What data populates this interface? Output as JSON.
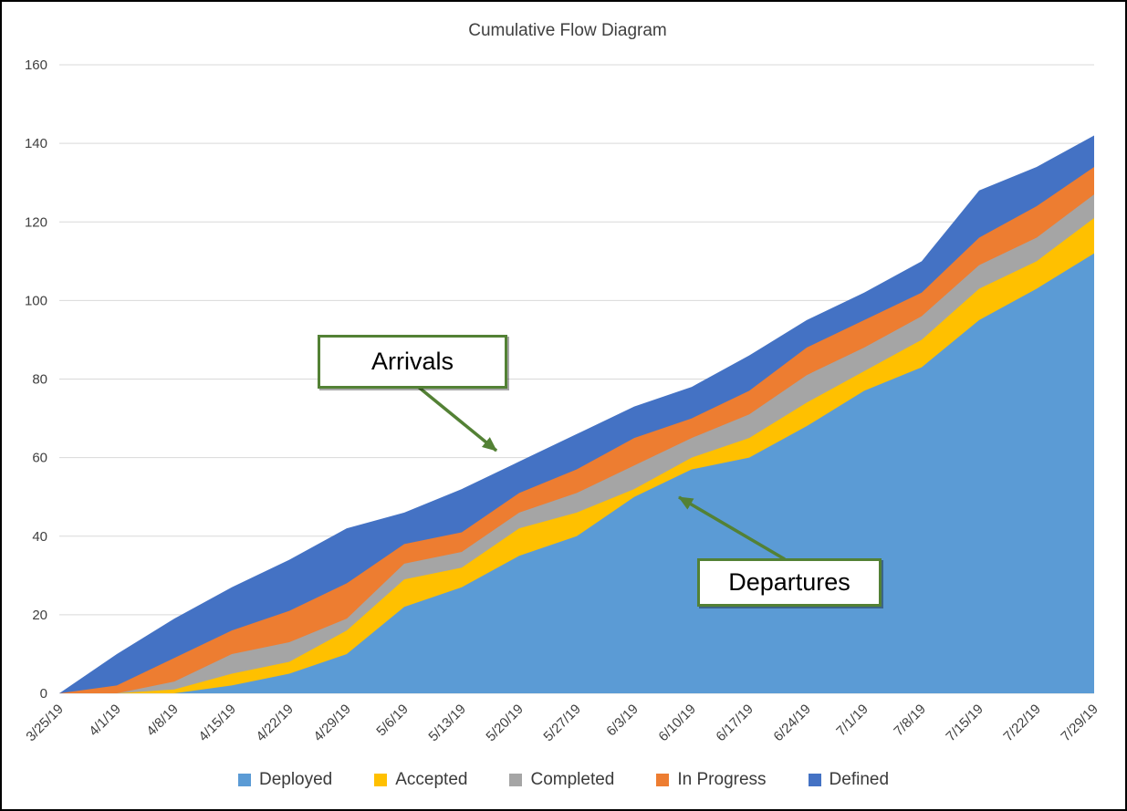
{
  "title": "Cumulative Flow Diagram",
  "chart_data": {
    "type": "area",
    "stacked": true,
    "title": "Cumulative Flow Diagram",
    "xlabel": "",
    "ylabel": "",
    "ylim": [
      0,
      160
    ],
    "ytick_step": 20,
    "grid": true,
    "legend_position": "bottom",
    "categories": [
      "3/25/19",
      "4/1/19",
      "4/8/19",
      "4/15/19",
      "4/22/19",
      "4/29/19",
      "5/6/19",
      "5/13/19",
      "5/20/19",
      "5/27/19",
      "6/3/19",
      "6/10/19",
      "6/17/19",
      "6/24/19",
      "7/1/19",
      "7/8/19",
      "7/15/19",
      "7/22/19",
      "7/29/19"
    ],
    "series": [
      {
        "name": "Deployed",
        "color": "#5B9BD5",
        "values": [
          0,
          0,
          0,
          2,
          5,
          10,
          22,
          27,
          35,
          40,
          50,
          57,
          60,
          68,
          77,
          83,
          95,
          103,
          112
        ]
      },
      {
        "name": "Accepted",
        "color": "#FFC000",
        "values": [
          0,
          0,
          1,
          3,
          3,
          6,
          7,
          5,
          7,
          6,
          2,
          3,
          5,
          6,
          5,
          7,
          8,
          7,
          9
        ]
      },
      {
        "name": "Completed",
        "color": "#A5A5A5",
        "values": [
          0,
          0,
          2,
          5,
          5,
          3,
          4,
          4,
          4,
          5,
          6,
          5,
          6,
          7,
          6,
          6,
          6,
          6,
          6
        ]
      },
      {
        "name": "In Progress",
        "color": "#ED7D31",
        "values": [
          0,
          2,
          6,
          6,
          8,
          9,
          5,
          5,
          5,
          6,
          7,
          5,
          6,
          7,
          7,
          6,
          7,
          8,
          7
        ]
      },
      {
        "name": "Defined",
        "color": "#4472C4",
        "values": [
          0,
          8,
          10,
          11,
          13,
          14,
          8,
          11,
          8,
          9,
          8,
          8,
          9,
          7,
          7,
          8,
          12,
          10,
          8
        ]
      }
    ],
    "cumulative_totals": [
      0,
      10,
      19,
      27,
      34,
      42,
      46,
      52,
      59,
      66,
      73,
      78,
      86,
      95,
      102,
      110,
      128,
      134,
      142
    ],
    "annotations": [
      {
        "text": "Arrivals",
        "points_to": "top boundary of Defined band near 5/20/19"
      },
      {
        "text": "Departures",
        "points_to": "top boundary of Accepted band near 6/10/19"
      }
    ],
    "annotation_color": "#538135"
  }
}
